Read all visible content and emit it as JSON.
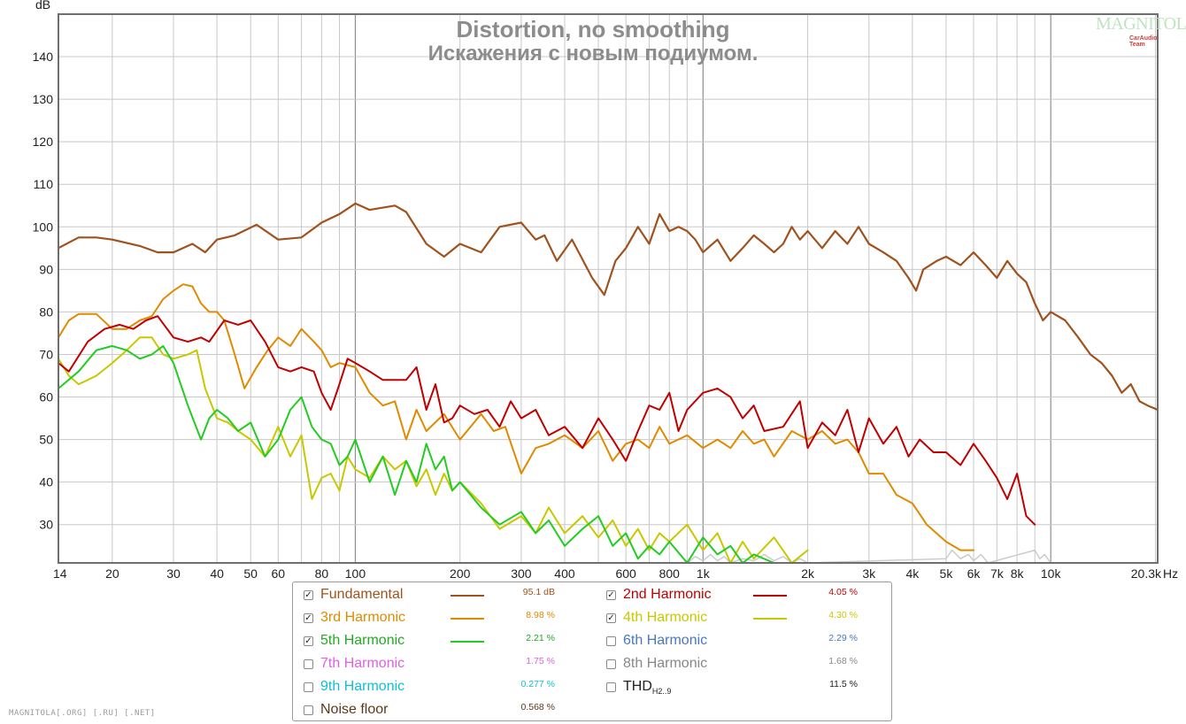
{
  "chart_data": {
    "type": "line",
    "title": "Distortion, no smoothing",
    "subtitle": "Искажения с новым подиумом.",
    "ylabel": "dB",
    "xlabel": "Hz",
    "x_scale": "log",
    "xlim": [
      14,
      20300
    ],
    "ylim": [
      21,
      150
    ],
    "yticks": [
      30,
      40,
      50,
      60,
      70,
      80,
      90,
      100,
      110,
      120,
      130,
      140
    ],
    "xticks": [
      {
        "v": 14,
        "label": "14"
      },
      {
        "v": 20,
        "label": "20"
      },
      {
        "v": 30,
        "label": "30"
      },
      {
        "v": 40,
        "label": "40"
      },
      {
        "v": 50,
        "label": "50"
      },
      {
        "v": 60,
        "label": "60"
      },
      {
        "v": 80,
        "label": "80"
      },
      {
        "v": 100,
        "label": "100"
      },
      {
        "v": 200,
        "label": "200"
      },
      {
        "v": 300,
        "label": "300"
      },
      {
        "v": 400,
        "label": "400"
      },
      {
        "v": 600,
        "label": "600"
      },
      {
        "v": 800,
        "label": "800"
      },
      {
        "v": 1000,
        "label": "1k"
      },
      {
        "v": 2000,
        "label": "2k"
      },
      {
        "v": 3000,
        "label": "3k"
      },
      {
        "v": 4000,
        "label": "4k"
      },
      {
        "v": 5000,
        "label": "5k"
      },
      {
        "v": 6000,
        "label": "6k"
      },
      {
        "v": 7000,
        "label": "7k"
      },
      {
        "v": 8000,
        "label": "8k"
      },
      {
        "v": 10000,
        "label": "10k"
      },
      {
        "v": 20300,
        "label": "20.3k"
      }
    ],
    "grid": true,
    "series": [
      {
        "name": "Fundamental",
        "color": "#a0521e",
        "width": 2.2,
        "x": [
          14,
          16,
          18,
          20,
          24,
          27,
          30,
          34,
          37,
          40,
          45,
          52,
          60,
          70,
          80,
          90,
          100,
          110,
          130,
          140,
          160,
          180,
          200,
          230,
          260,
          300,
          330,
          350,
          380,
          420,
          480,
          520,
          560,
          600,
          650,
          700,
          750,
          800,
          850,
          900,
          950,
          1000,
          1100,
          1200,
          1300,
          1400,
          1500,
          1600,
          1700,
          1800,
          1900,
          2000,
          2200,
          2400,
          2600,
          2800,
          3000,
          3300,
          3600,
          3900,
          4100,
          4300,
          4700,
          5000,
          5500,
          6000,
          6500,
          7000,
          7500,
          8000,
          8500,
          9000,
          9500,
          10000,
          11000,
          12000,
          13000,
          14000,
          15000,
          16000,
          17000,
          18000,
          19000,
          20300
        ],
        "y": [
          95,
          97.5,
          97.5,
          97,
          95.5,
          94,
          94,
          96,
          94,
          97,
          98,
          100.5,
          97,
          97.5,
          101,
          103,
          105.5,
          104,
          105,
          103.5,
          96,
          93,
          96,
          94,
          100,
          101,
          97,
          98,
          92,
          97,
          88,
          84,
          92,
          95,
          100,
          96,
          103,
          99,
          100,
          99,
          97,
          94,
          97,
          92,
          95,
          98,
          96,
          94,
          96,
          100,
          97,
          99,
          95,
          99,
          96,
          100,
          96,
          94,
          92,
          88,
          85,
          90,
          92,
          93,
          91,
          94,
          91,
          88,
          92,
          89,
          87,
          82,
          78,
          80,
          78,
          74,
          70,
          68,
          65,
          61,
          63,
          59,
          58,
          57
        ]
      },
      {
        "name": "2nd Harmonic",
        "color": "#c00000",
        "width": 2,
        "x": [
          14,
          15,
          17,
          19,
          21,
          23,
          25,
          27,
          30,
          33,
          36,
          38,
          42,
          46,
          50,
          55,
          60,
          65,
          70,
          76,
          80,
          85,
          90,
          95,
          100,
          110,
          120,
          140,
          150,
          160,
          170,
          180,
          190,
          200,
          220,
          240,
          260,
          280,
          300,
          330,
          360,
          400,
          450,
          500,
          550,
          600,
          650,
          700,
          750,
          800,
          850,
          900,
          1000,
          1100,
          1200,
          1300,
          1400,
          1500,
          1700,
          1900,
          2000,
          2200,
          2400,
          2600,
          2800,
          3000,
          3300,
          3600,
          3900,
          4200,
          4600,
          5000,
          5500,
          6000,
          6500,
          7000,
          7500,
          8000,
          8500,
          9000
        ],
        "y": [
          68,
          66,
          73,
          76,
          77,
          76,
          78,
          79,
          74,
          73,
          74,
          73,
          78,
          77,
          78,
          73,
          67,
          66,
          67,
          66,
          61,
          57,
          63,
          69,
          68,
          66,
          64,
          64,
          67,
          57,
          63,
          54,
          55,
          58,
          56,
          57,
          53,
          59,
          55,
          57,
          51,
          53,
          48,
          55,
          50,
          45,
          52,
          58,
          57,
          61,
          52,
          57,
          61,
          62,
          60,
          55,
          58,
          52,
          53,
          59,
          48,
          54,
          51,
          57,
          47,
          55,
          49,
          53,
          46,
          50,
          47,
          47,
          44,
          49,
          45,
          41,
          36,
          42,
          32,
          30
        ]
      },
      {
        "name": "3rd Harmonic",
        "color": "#e08a00",
        "width": 2,
        "x": [
          14,
          15,
          16,
          18,
          20,
          22,
          24,
          26,
          28,
          30,
          32,
          34,
          36,
          38,
          40,
          42,
          45,
          48,
          52,
          56,
          60,
          65,
          70,
          76,
          80,
          85,
          90,
          100,
          110,
          120,
          130,
          140,
          150,
          160,
          180,
          200,
          230,
          250,
          270,
          300,
          330,
          360,
          400,
          450,
          500,
          550,
          600,
          650,
          700,
          750,
          800,
          900,
          1000,
          1100,
          1200,
          1300,
          1400,
          1500,
          1600,
          1800,
          2000,
          2200,
          2400,
          2600,
          2800,
          3000,
          3300,
          3600,
          4000,
          4400,
          5000,
          5500,
          6000
        ],
        "y": [
          74,
          78,
          79.5,
          79.5,
          76,
          76,
          78,
          79,
          83,
          85,
          86.5,
          86,
          82,
          80,
          80,
          78,
          70,
          62,
          67,
          71,
          74,
          72,
          76,
          73,
          71,
          67,
          68,
          67,
          61,
          58,
          59,
          50,
          57,
          52,
          56,
          50,
          56,
          52,
          53,
          42,
          48,
          49,
          51,
          48,
          52,
          45,
          49,
          50,
          48,
          53,
          49,
          51,
          48,
          50,
          48,
          52,
          49,
          50,
          46,
          52,
          50,
          52,
          49,
          50,
          47,
          42,
          42,
          37,
          35,
          30,
          26,
          24,
          24
        ]
      },
      {
        "name": "4th Harmonic",
        "color": "#c8c800",
        "width": 2,
        "x": [
          14,
          15,
          16,
          17,
          18,
          20,
          22,
          24,
          26,
          28,
          30,
          33,
          35,
          37,
          40,
          43,
          46,
          50,
          55,
          60,
          65,
          70,
          75,
          80,
          85,
          90,
          95,
          100,
          110,
          120,
          130,
          140,
          150,
          160,
          170,
          180,
          190,
          200,
          230,
          260,
          300,
          330,
          360,
          400,
          450,
          500,
          550,
          600,
          650,
          700,
          750,
          800,
          900,
          1000,
          1100,
          1200,
          1300,
          1400,
          1600,
          1800,
          2000
        ],
        "y": [
          69,
          65,
          63,
          64,
          65,
          68,
          71,
          74,
          74,
          70,
          69,
          70,
          71,
          62,
          55,
          54,
          52,
          50,
          46,
          53,
          46,
          51,
          36,
          41,
          42,
          38,
          46,
          43,
          41,
          46,
          43,
          45,
          39,
          43,
          37,
          42,
          38,
          40,
          35,
          29,
          32,
          28,
          34,
          28,
          32,
          27,
          31,
          25,
          29,
          24,
          28,
          26,
          30,
          24,
          28,
          21,
          26,
          22,
          27,
          21,
          24
        ]
      },
      {
        "name": "5th Harmonic",
        "color": "#22cc22",
        "width": 2,
        "x": [
          14,
          16,
          18,
          20,
          22,
          24,
          26,
          28,
          30,
          33,
          36,
          38,
          40,
          43,
          46,
          50,
          55,
          60,
          65,
          70,
          75,
          80,
          85,
          90,
          95,
          100,
          110,
          120,
          130,
          140,
          150,
          160,
          170,
          180,
          190,
          200,
          230,
          260,
          300,
          330,
          360,
          400,
          450,
          500,
          550,
          600,
          650,
          700,
          750,
          800,
          900,
          1000,
          1100,
          1200,
          1300,
          1400,
          1600
        ],
        "y": [
          62,
          66,
          71,
          72,
          71,
          69,
          70,
          72,
          68,
          58,
          50,
          55,
          57,
          55,
          52,
          54,
          46,
          50,
          57,
          60,
          53,
          50,
          49,
          44,
          46,
          50,
          40,
          46,
          37,
          45,
          40,
          49,
          43,
          46,
          38,
          40,
          34,
          30,
          33,
          28,
          31,
          25,
          29,
          32,
          25,
          28,
          22,
          25,
          23,
          26,
          21,
          27,
          23,
          25,
          21,
          23,
          21
        ]
      },
      {
        "name": "Noise floor",
        "color": "#cccccc",
        "width": 1.5,
        "x": [
          900,
          950,
          1000,
          1050,
          1100,
          1150,
          1200,
          1300,
          1400,
          1500,
          1600,
          1700,
          1800,
          1900,
          2000,
          5000,
          5200,
          5500,
          5800,
          6000,
          6300,
          6600,
          9000,
          9300,
          9600,
          10000
        ],
        "y": [
          21,
          22.5,
          21.5,
          23,
          21.5,
          22.5,
          21,
          22,
          21.5,
          23,
          21.5,
          22.5,
          21,
          22,
          21,
          22,
          24,
          22,
          23,
          21.5,
          23,
          21,
          24,
          22,
          23,
          21
        ]
      }
    ]
  },
  "legend": [
    {
      "label": "Fundamental",
      "checked": true,
      "value": "95.1 dB",
      "label_color": "#a0521e",
      "value_color": "#a0521e",
      "swatch": "#a0521e"
    },
    {
      "label": "2nd Harmonic",
      "checked": true,
      "value": "4.05 %",
      "label_color": "#c00000",
      "value_color": "#c00000",
      "swatch": "#c00000"
    },
    {
      "label": "3rd Harmonic",
      "checked": true,
      "value": "8.98 %",
      "label_color": "#e08a00",
      "value_color": "#e08a00",
      "swatch": "#e08a00"
    },
    {
      "label": "4th Harmonic",
      "checked": true,
      "value": "4.30 %",
      "label_color": "#c8c800",
      "value_color": "#c8c800",
      "swatch": "#c8c800"
    },
    {
      "label": "5th Harmonic",
      "checked": true,
      "value": "2.21 %",
      "label_color": "#22aa22",
      "value_color": "#22aa22",
      "swatch": "#22cc22"
    },
    {
      "label": "6th Harmonic",
      "checked": false,
      "value": "2.29 %",
      "label_color": "#4a78c0",
      "value_color": "#4a78c0",
      "swatch": ""
    },
    {
      "label": "7th Harmonic",
      "checked": false,
      "value": "1.75 %",
      "label_color": "#e060e0",
      "value_color": "#e060e0",
      "swatch": ""
    },
    {
      "label": "8th Harmonic",
      "checked": false,
      "value": "1.68 %",
      "label_color": "#888888",
      "value_color": "#888888",
      "swatch": ""
    },
    {
      "label": "9th Harmonic",
      "checked": false,
      "value": "0.277 %",
      "label_color": "#10c0d0",
      "value_color": "#10c0d0",
      "swatch": ""
    },
    {
      "label": "THD",
      "label_sub": "H2..9",
      "checked": false,
      "value": "11.5 %",
      "label_color": "#222222",
      "value_color": "#222222",
      "swatch": ""
    },
    {
      "label": "Noise floor",
      "checked": false,
      "value": "0.568 %",
      "label_color": "#5a3a1a",
      "value_color": "#5a3a1a",
      "swatch": ""
    }
  ],
  "watermark": {
    "bottom_text": "MAGNITOLA[.ORG] [.RU] [.NET]",
    "logo_text": "MAGNITOLA",
    "logo_sub": "CarAudio Team"
  }
}
